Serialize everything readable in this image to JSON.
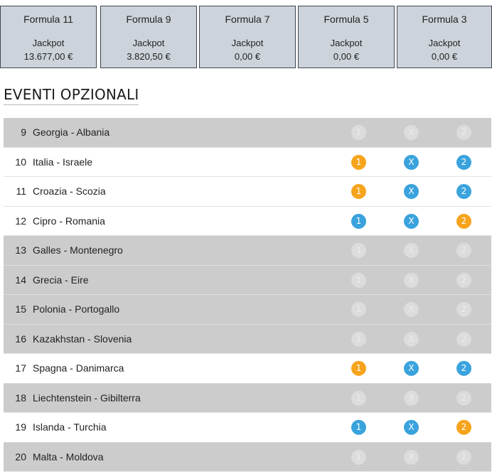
{
  "formulas": [
    {
      "name": "Formula 11",
      "jackpot_label": "Jackpot",
      "jackpot_value": "13.677,00 €"
    },
    {
      "name": "Formula 9",
      "jackpot_label": "Jackpot",
      "jackpot_value": "3.820,50 €"
    },
    {
      "name": "Formula 7",
      "jackpot_label": "Jackpot",
      "jackpot_value": "0,00 €"
    },
    {
      "name": "Formula 5",
      "jackpot_label": "Jackpot",
      "jackpot_value": "0,00 €"
    },
    {
      "name": "Formula 3",
      "jackpot_label": "Jackpot",
      "jackpot_value": "0,00 €"
    }
  ],
  "section_title": "EVENTI OPZIONALI",
  "colors": {
    "pick_blue": "#3aa3dd",
    "pick_orange": "#f7a41d",
    "pick_disabled": "#dcdcdc",
    "row_disabled": "#cccccc",
    "card_bg": "#cdd3da"
  },
  "events": [
    {
      "num": "9",
      "match": "Georgia - Albania",
      "enabled": false,
      "picks": [
        {
          "label": "1",
          "state": "off"
        },
        {
          "label": "X",
          "state": "off"
        },
        {
          "label": "2",
          "state": "off"
        }
      ]
    },
    {
      "num": "10",
      "match": "Italia - Israele",
      "enabled": true,
      "picks": [
        {
          "label": "1",
          "state": "orange"
        },
        {
          "label": "X",
          "state": "blue"
        },
        {
          "label": "2",
          "state": "blue"
        }
      ]
    },
    {
      "num": "11",
      "match": "Croazia - Scozia",
      "enabled": true,
      "picks": [
        {
          "label": "1",
          "state": "orange"
        },
        {
          "label": "X",
          "state": "blue"
        },
        {
          "label": "2",
          "state": "blue"
        }
      ]
    },
    {
      "num": "12",
      "match": "Cipro - Romania",
      "enabled": true,
      "picks": [
        {
          "label": "1",
          "state": "blue"
        },
        {
          "label": "X",
          "state": "blue"
        },
        {
          "label": "2",
          "state": "orange"
        }
      ]
    },
    {
      "num": "13",
      "match": "Galles - Montenegro",
      "enabled": false,
      "picks": [
        {
          "label": "1",
          "state": "off"
        },
        {
          "label": "X",
          "state": "off"
        },
        {
          "label": "2",
          "state": "off"
        }
      ]
    },
    {
      "num": "14",
      "match": "Grecia - Eire",
      "enabled": false,
      "picks": [
        {
          "label": "1",
          "state": "off"
        },
        {
          "label": "X",
          "state": "off"
        },
        {
          "label": "2",
          "state": "off"
        }
      ]
    },
    {
      "num": "15",
      "match": "Polonia - Portogallo",
      "enabled": false,
      "picks": [
        {
          "label": "1",
          "state": "off"
        },
        {
          "label": "X",
          "state": "off"
        },
        {
          "label": "2",
          "state": "off"
        }
      ]
    },
    {
      "num": "16",
      "match": "Kazakhstan - Slovenia",
      "enabled": false,
      "picks": [
        {
          "label": "1",
          "state": "off"
        },
        {
          "label": "X",
          "state": "off"
        },
        {
          "label": "2",
          "state": "off"
        }
      ]
    },
    {
      "num": "17",
      "match": "Spagna - Danimarca",
      "enabled": true,
      "picks": [
        {
          "label": "1",
          "state": "orange"
        },
        {
          "label": "X",
          "state": "blue"
        },
        {
          "label": "2",
          "state": "blue"
        }
      ]
    },
    {
      "num": "18",
      "match": "Liechtenstein - Gibilterra",
      "enabled": false,
      "picks": [
        {
          "label": "1",
          "state": "off"
        },
        {
          "label": "X",
          "state": "off"
        },
        {
          "label": "2",
          "state": "off"
        }
      ]
    },
    {
      "num": "19",
      "match": "Islanda - Turchia",
      "enabled": true,
      "picks": [
        {
          "label": "1",
          "state": "blue"
        },
        {
          "label": "X",
          "state": "blue"
        },
        {
          "label": "2",
          "state": "orange"
        }
      ]
    },
    {
      "num": "20",
      "match": "Malta - Moldova",
      "enabled": false,
      "picks": [
        {
          "label": "1",
          "state": "off"
        },
        {
          "label": "X",
          "state": "off"
        },
        {
          "label": "2",
          "state": "off"
        }
      ]
    }
  ]
}
